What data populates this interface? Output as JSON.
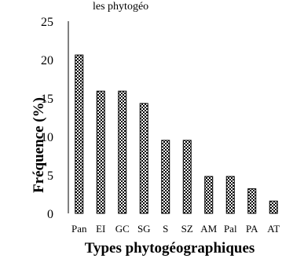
{
  "chart_data": {
    "type": "bar",
    "title": "",
    "top_text_fragment": "les phytogéo",
    "xlabel": "Types phytogéographiques",
    "ylabel": "Fréquence (%)",
    "categories": [
      "Pan",
      "EI",
      "GC",
      "SG",
      "S",
      "SZ",
      "AM",
      "Pal",
      "PA",
      "AT"
    ],
    "values": [
      20.6,
      15.9,
      15.9,
      14.3,
      9.5,
      9.5,
      4.8,
      4.8,
      3.2,
      1.6
    ],
    "ylim": [
      0,
      25
    ],
    "yticks": [
      "0",
      "5",
      "10",
      "15",
      "20",
      "25"
    ],
    "grid": false,
    "legend": "none",
    "bar_pattern": "checkered",
    "colors": {
      "bar_fill": "#ffffff",
      "bar_pattern": "#000000",
      "axis": "#000000"
    }
  }
}
